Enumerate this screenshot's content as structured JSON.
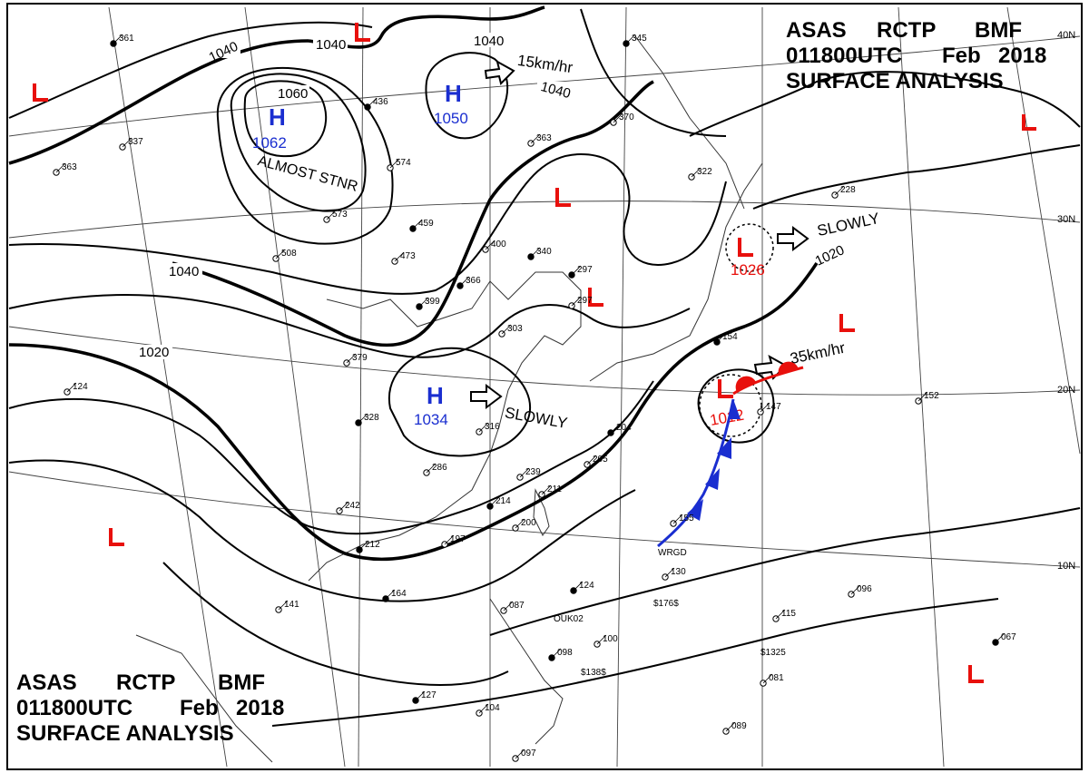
{
  "header": {
    "agency": "ASAS",
    "station": "RCTP",
    "office": "BMF",
    "datetime": "011800UTC",
    "month": "Feb",
    "year": "2018",
    "product": "SURFACE ANALYSIS"
  },
  "colors": {
    "low": "#e8100c",
    "high": "#1a2ed0",
    "isobar": "#000000",
    "cold_front": "#1a2ed0",
    "warm_front": "#e8100c"
  },
  "lat_labels": [
    "40N",
    "30N",
    "20N",
    "10N"
  ],
  "isobar_labels": [
    "1040",
    "1040",
    "1040",
    "1040",
    "1060",
    "1040",
    "1020",
    "1020"
  ],
  "pressure_centers": [
    {
      "type": "H",
      "value": "1062",
      "note": "ALMOST STNR"
    },
    {
      "type": "H",
      "value": "1050",
      "motion": "15km/hr"
    },
    {
      "type": "H",
      "value": "1034",
      "motion": "SLOWLY"
    },
    {
      "type": "L",
      "value": "1026",
      "motion": "SLOWLY"
    },
    {
      "type": "L",
      "value": "1012",
      "motion": "35km/hr"
    }
  ],
  "lows_unlabeled": [
    "L",
    "L",
    "L",
    "L",
    "L",
    "L",
    "L",
    "L"
  ],
  "stations": [
    {
      "v": "361"
    },
    {
      "v": "337"
    },
    {
      "v": "363"
    },
    {
      "v": "436"
    },
    {
      "v": "574"
    },
    {
      "v": "573"
    },
    {
      "v": "459"
    },
    {
      "v": "473"
    },
    {
      "v": "400"
    },
    {
      "v": "340"
    },
    {
      "v": "363"
    },
    {
      "v": "370"
    },
    {
      "v": "345"
    },
    {
      "v": "322"
    },
    {
      "v": "228"
    },
    {
      "v": "297"
    },
    {
      "v": "297"
    },
    {
      "v": "303"
    },
    {
      "v": "366"
    },
    {
      "v": "508"
    },
    {
      "v": "379"
    },
    {
      "v": "399"
    },
    {
      "v": "124"
    },
    {
      "v": "316"
    },
    {
      "v": "328"
    },
    {
      "v": "286"
    },
    {
      "v": "239"
    },
    {
      "v": "204"
    },
    {
      "v": "205"
    },
    {
      "v": "211"
    },
    {
      "v": "214"
    },
    {
      "v": "200"
    },
    {
      "v": "242"
    },
    {
      "v": "212"
    },
    {
      "v": "197"
    },
    {
      "v": "155"
    },
    {
      "v": "154"
    },
    {
      "v": "147"
    },
    {
      "v": "152"
    },
    {
      "v": "164"
    },
    {
      "v": "141"
    },
    {
      "v": "087"
    },
    {
      "v": "098"
    },
    {
      "v": "100"
    },
    {
      "v": "130"
    },
    {
      "v": "124"
    },
    {
      "v": "115"
    },
    {
      "v": "096"
    },
    {
      "v": "067"
    },
    {
      "v": "081"
    },
    {
      "v": "089"
    },
    {
      "v": "127"
    },
    {
      "v": "104"
    },
    {
      "v": "097"
    }
  ],
  "ship_ids": [
    "WRGD",
    "$1325",
    "$138$",
    "$176$",
    "OUK02"
  ]
}
